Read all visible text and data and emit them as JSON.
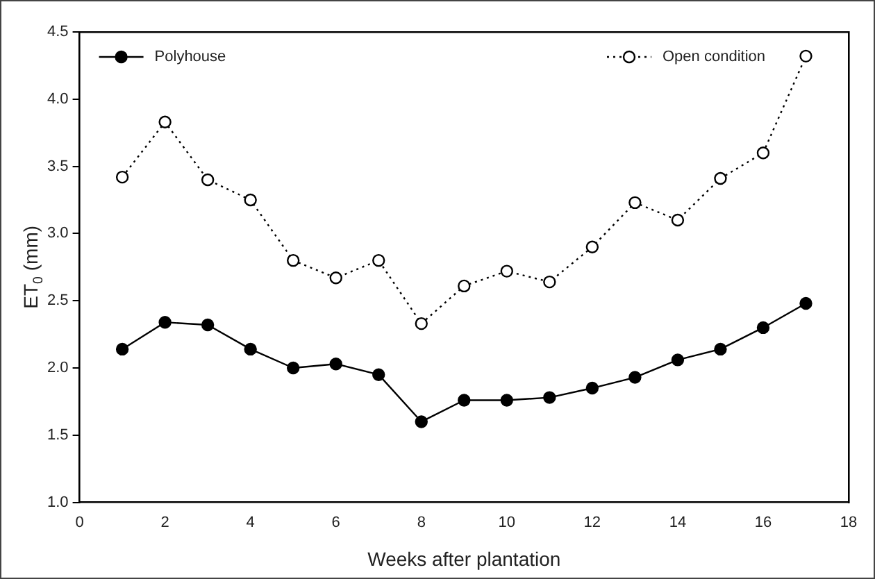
{
  "chart_data": {
    "type": "line",
    "xlabel": "Weeks after plantation",
    "ylabel": "ET$_{0}$ (mm)",
    "x": [
      1,
      2,
      3,
      4,
      5,
      6,
      7,
      8,
      9,
      10,
      11,
      12,
      13,
      14,
      15,
      16,
      17
    ],
    "series": [
      {
        "name": "Polyhouse",
        "color": "#000000",
        "line_style": "solid",
        "values": [
          2.14,
          2.34,
          2.32,
          2.14,
          2.0,
          2.03,
          1.95,
          1.6,
          1.76,
          1.76,
          1.78,
          1.85,
          1.93,
          2.06,
          2.14,
          2.3,
          2.48
        ]
      },
      {
        "name": "Open condition",
        "color": "#000000",
        "line_style": "dotted",
        "values": [
          3.42,
          3.83,
          3.4,
          3.25,
          2.8,
          2.67,
          2.8,
          2.33,
          2.61,
          2.72,
          2.64,
          2.9,
          3.23,
          3.1,
          3.41,
          3.6,
          4.32
        ]
      }
    ],
    "xlim": [
      0,
      18
    ],
    "xticks": [
      0,
      2,
      4,
      6,
      8,
      10,
      12,
      14,
      16,
      18
    ],
    "ylim": [
      1.0,
      4.5
    ],
    "yticks": [
      {
        "value": 1.0,
        "label": "1.0"
      },
      {
        "value": 1.5,
        "label": "1.5"
      },
      {
        "value": 2.0,
        "label": "2.0"
      },
      {
        "value": 2.5,
        "label": "2.5"
      },
      {
        "value": 3.0,
        "label": "3.0"
      },
      {
        "value": 3.5,
        "label": "3.5"
      },
      {
        "value": 4.0,
        "label": "4.0"
      },
      {
        "value": 4.5,
        "label": "4.5"
      }
    ],
    "grid": false,
    "legend": "top",
    "marker": "circle"
  }
}
